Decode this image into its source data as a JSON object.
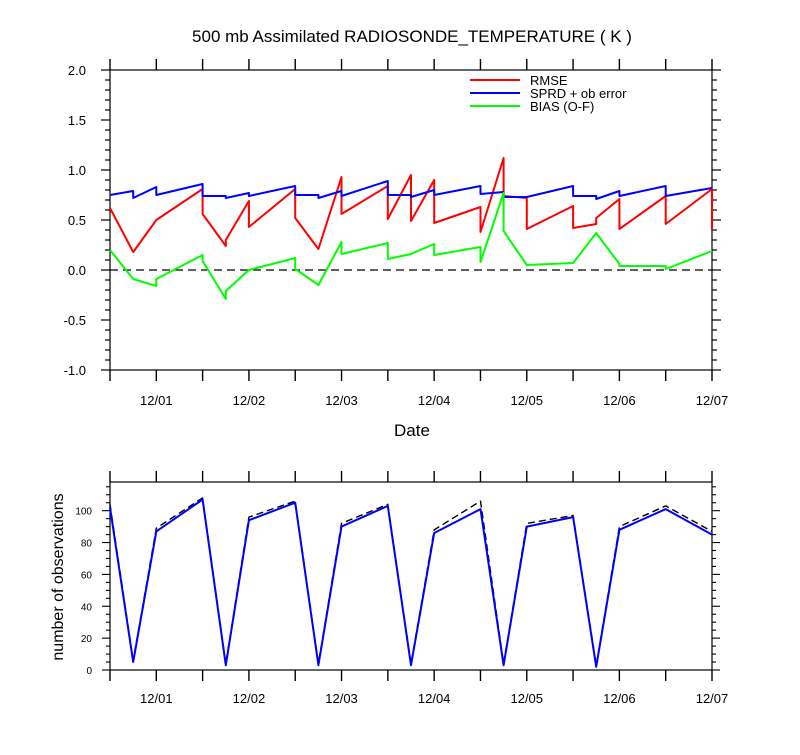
{
  "page_title": "500 mb Assimilated RADIOSONDE_TEMPERATURE ( K )",
  "chart_data": [
    {
      "type": "line",
      "title": "500 mb Assimilated RADIOSONDE_TEMPERATURE ( K )",
      "xlabel": "Date",
      "ylabel": "",
      "x_tick_labels": [
        "12/01",
        "12/02",
        "12/03",
        "12/04",
        "12/05",
        "12/06",
        "12/07"
      ],
      "y_tick_labels": [
        "2.0",
        "1.5",
        "1.0",
        "0.5",
        "0.0",
        "-0.5",
        "-1.0"
      ],
      "xlim": [
        "11/30 12Z",
        "12/07 00Z"
      ],
      "ylim": [
        -1.0,
        2.0
      ],
      "reference_line": {
        "y": 0.0,
        "style": "dashed",
        "color": "#000000"
      },
      "legend_placement": "top-right",
      "grid": false,
      "series": [
        {
          "name": "RMSE",
          "color": "#ff0000",
          "segments": [
            [
              [
                0.0,
                0.62
              ],
              [
                0.25,
                0.18
              ],
              [
                0.5,
                0.5
              ],
              [
                1.0,
                0.81
              ],
              [
                1.0,
                0.56
              ],
              [
                1.25,
                0.24
              ],
              [
                1.25,
                0.3
              ],
              [
                1.5,
                0.69
              ],
              [
                1.5,
                0.43
              ],
              [
                2.0,
                0.81
              ],
              [
                2.0,
                0.52
              ],
              [
                2.25,
                0.21
              ],
              [
                2.5,
                0.93
              ],
              [
                2.5,
                0.56
              ],
              [
                3.0,
                0.84
              ],
              [
                3.0,
                0.51
              ],
              [
                3.25,
                0.95
              ],
              [
                3.25,
                0.49
              ],
              [
                3.5,
                0.9
              ],
              [
                3.5,
                0.47
              ],
              [
                4.0,
                0.63
              ],
              [
                4.0,
                0.38
              ],
              [
                4.25,
                1.12
              ],
              [
                4.25,
                0.74
              ],
              [
                4.5,
                0.72
              ],
              [
                4.5,
                0.41
              ],
              [
                5.0,
                0.64
              ],
              [
                5.0,
                0.42
              ],
              [
                5.25,
                0.46
              ],
              [
                5.25,
                0.52
              ],
              [
                5.5,
                0.71
              ],
              [
                5.5,
                0.41
              ],
              [
                6.0,
                0.74
              ],
              [
                6.0,
                0.46
              ],
              [
                6.5,
                0.81
              ],
              [
                6.5,
                0.4
              ]
            ]
          ]
        },
        {
          "name": "SPRD + ob error",
          "color": "#0000ff",
          "segments": [
            [
              [
                0.0,
                0.75
              ],
              [
                0.25,
                0.79
              ],
              [
                0.25,
                0.72
              ],
              [
                0.5,
                0.83
              ],
              [
                0.5,
                0.75
              ],
              [
                1.0,
                0.86
              ],
              [
                1.0,
                0.74
              ],
              [
                1.25,
                0.74
              ],
              [
                1.25,
                0.72
              ],
              [
                1.5,
                0.77
              ],
              [
                1.5,
                0.74
              ],
              [
                2.0,
                0.84
              ],
              [
                2.0,
                0.75
              ],
              [
                2.25,
                0.75
              ],
              [
                2.25,
                0.72
              ],
              [
                2.5,
                0.79
              ],
              [
                2.5,
                0.74
              ],
              [
                3.0,
                0.89
              ],
              [
                3.0,
                0.75
              ],
              [
                3.25,
                0.75
              ],
              [
                3.25,
                0.73
              ],
              [
                3.5,
                0.8
              ],
              [
                3.5,
                0.75
              ],
              [
                4.0,
                0.84
              ],
              [
                4.0,
                0.76
              ],
              [
                4.25,
                0.78
              ],
              [
                4.25,
                0.73
              ],
              [
                4.5,
                0.73
              ],
              [
                4.5,
                0.73
              ],
              [
                5.0,
                0.84
              ],
              [
                5.0,
                0.74
              ],
              [
                5.25,
                0.74
              ],
              [
                5.25,
                0.71
              ],
              [
                5.5,
                0.79
              ],
              [
                5.5,
                0.74
              ],
              [
                6.0,
                0.84
              ],
              [
                6.0,
                0.74
              ],
              [
                6.5,
                0.82
              ]
            ]
          ]
        },
        {
          "name": "BIAS (O-F)",
          "color": "#00ff00",
          "segments": [
            [
              [
                0.0,
                0.2
              ],
              [
                0.25,
                -0.09
              ],
              [
                0.5,
                -0.16
              ],
              [
                0.5,
                -0.09
              ],
              [
                1.0,
                0.15
              ],
              [
                1.0,
                0.09
              ],
              [
                1.25,
                -0.29
              ],
              [
                1.25,
                -0.21
              ],
              [
                1.5,
                0.0
              ],
              [
                1.5,
                0.0
              ],
              [
                2.0,
                0.12
              ],
              [
                2.0,
                0.01
              ],
              [
                2.25,
                -0.15
              ],
              [
                2.5,
                0.28
              ],
              [
                2.5,
                0.16
              ],
              [
                3.0,
                0.27
              ],
              [
                3.0,
                0.11
              ],
              [
                3.25,
                0.16
              ],
              [
                3.5,
                0.26
              ],
              [
                3.5,
                0.15
              ],
              [
                4.0,
                0.23
              ],
              [
                4.0,
                0.08
              ],
              [
                4.25,
                0.77
              ],
              [
                4.25,
                0.39
              ],
              [
                4.5,
                0.05
              ],
              [
                5.0,
                0.07
              ],
              [
                5.25,
                0.37
              ],
              [
                5.5,
                0.06
              ],
              [
                5.5,
                0.04
              ],
              [
                6.0,
                0.04
              ],
              [
                6.0,
                0.01
              ],
              [
                6.5,
                0.19
              ]
            ]
          ]
        }
      ]
    },
    {
      "type": "line",
      "title": "",
      "xlabel": "",
      "ylabel": "number of observations",
      "x_tick_labels": [
        "12/01",
        "12/02",
        "12/03",
        "12/04",
        "12/05",
        "12/06",
        "12/07"
      ],
      "y_tick_labels": [
        "0",
        "20",
        "40",
        "60",
        "80",
        "100"
      ],
      "xlim": [
        "11/30 12Z",
        "12/07 00Z"
      ],
      "ylim": [
        0,
        118
      ],
      "grid": false,
      "series": [
        {
          "name": "",
          "color": "#0000ff",
          "style": "solid",
          "x": [
            0.0,
            0.25,
            0.5,
            1.0,
            1.25,
            1.5,
            2.0,
            2.25,
            2.5,
            3.0,
            3.25,
            3.5,
            4.0,
            4.25,
            4.5,
            5.0,
            5.25,
            5.5,
            6.0,
            6.5
          ],
          "values": [
            102,
            5,
            87,
            107,
            3,
            94,
            105,
            3,
            90,
            103,
            3,
            86,
            101,
            3,
            90,
            96,
            2,
            88,
            101,
            85
          ]
        },
        {
          "name": "",
          "color": "#000000",
          "style": "dashed",
          "x": [
            0.0,
            0.25,
            0.5,
            1.0,
            1.25,
            1.5,
            2.0,
            2.25,
            2.5,
            3.0,
            3.25,
            3.5,
            4.0,
            4.25,
            4.5,
            5.0,
            5.25,
            5.5,
            6.0,
            6.5
          ],
          "values": [
            104,
            6,
            89,
            108,
            4,
            96,
            106,
            4,
            92,
            104,
            4,
            88,
            106,
            4,
            92,
            97,
            3,
            90,
            103,
            87
          ]
        }
      ]
    }
  ]
}
